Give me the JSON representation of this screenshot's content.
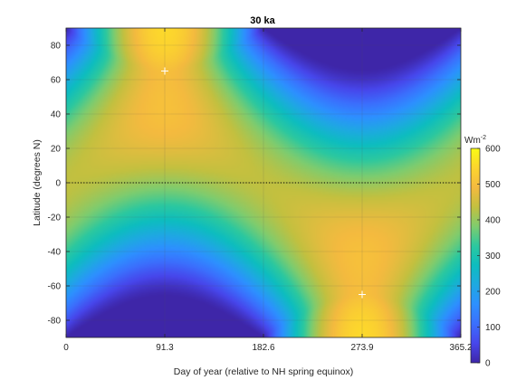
{
  "chart_data": {
    "type": "heatmap",
    "title": "30 ka",
    "xlabel": "Day of year (relative to NH spring equinox)",
    "ylabel": "Latitude (degrees N)",
    "x_ticks": [
      "0",
      "91.3",
      "182.6",
      "273.9",
      "365.2"
    ],
    "x_tick_values": [
      0,
      91.3,
      182.6,
      273.9,
      365.2
    ],
    "y_ticks": [
      "80",
      "60",
      "40",
      "20",
      "0",
      "-20",
      "-40",
      "-60",
      "-80"
    ],
    "y_tick_values": [
      80,
      60,
      40,
      20,
      0,
      -20,
      -40,
      -60,
      -80
    ],
    "xlim": [
      0,
      365.2
    ],
    "ylim": [
      -90,
      90
    ],
    "colorbar": {
      "label": "Wm",
      "label_exponent": "-2",
      "ticks": [
        "600",
        "500",
        "400",
        "300",
        "200",
        "100",
        "0"
      ],
      "tick_values": [
        600,
        500,
        400,
        300,
        200,
        100,
        0
      ],
      "range": [
        0,
        600
      ]
    },
    "reference_line": {
      "y": 0,
      "style": "dotted"
    },
    "markers": [
      {
        "x": 91.3,
        "y": 65,
        "symbol": "+"
      },
      {
        "x": 273.9,
        "y": -65,
        "symbol": "+"
      }
    ],
    "colormap": [
      "#3e26a8",
      "#4746eb",
      "#3b6ffd",
      "#2d90ff",
      "#1ea9e1",
      "#0dbdbf",
      "#2cc89f",
      "#7fcc6e",
      "#c3c03f",
      "#f4ba3f",
      "#fcd52e",
      "#f9fb14"
    ],
    "grid": true
  }
}
